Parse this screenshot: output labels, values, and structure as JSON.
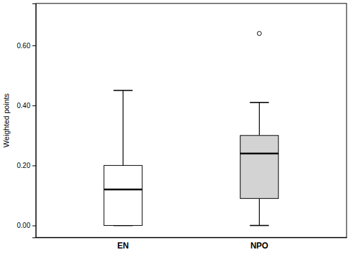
{
  "chart_data": {
    "type": "box",
    "y_label": "Weighted points",
    "categories": [
      "EN",
      "NPO"
    ],
    "boxes": [
      {
        "min": 0,
        "q1": 0,
        "median": 0.12,
        "q3": 0.2,
        "max": 0.45,
        "outliers": []
      },
      {
        "min": 0,
        "q1": 0.09,
        "median": 0.24,
        "q3": 0.3,
        "max": 0.41,
        "outliers": [
          0.64
        ]
      }
    ],
    "colors": [
      "#ffffff",
      "#d3d3d3"
    ],
    "ylim": [
      -0.04,
      0.74
    ],
    "yticks": [
      {
        "value": 0,
        "label": "0.00"
      },
      {
        "value": 0.2,
        "label": "0.20"
      },
      {
        "value": 0.4,
        "label": "0.40"
      },
      {
        "value": 0.6,
        "label": "0.60"
      }
    ],
    "grid": false
  }
}
